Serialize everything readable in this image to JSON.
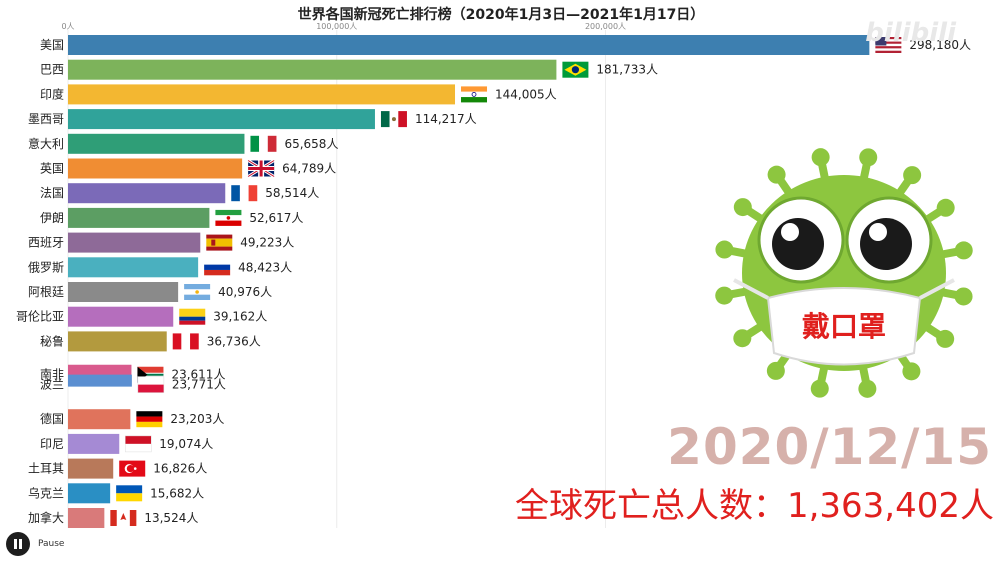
{
  "chart_data": {
    "type": "bar",
    "orientation": "horizontal",
    "title": "世界各国新冠死亡排行榜（2020年1月3日—2021年1月17日）",
    "x_ticks": [
      "0人",
      "100,000人",
      "200,000人"
    ],
    "x_tick_values": [
      0,
      100000,
      200000
    ],
    "xlim": [
      0,
      320000
    ],
    "categories": [
      "美国",
      "巴西",
      "印度",
      "墨西哥",
      "意大利",
      "英国",
      "法国",
      "伊朗",
      "西班牙",
      "俄罗斯",
      "阿根廷",
      "哥伦比亚",
      "秘鲁",
      "南非",
      "波兰",
      "德国",
      "印尼",
      "土耳其",
      "乌克兰",
      "加拿大"
    ],
    "values": [
      298180,
      181733,
      144005,
      114217,
      65658,
      64789,
      58514,
      52617,
      49223,
      48423,
      40976,
      39162,
      36736,
      23611,
      23771,
      23203,
      19074,
      16826,
      15682,
      13524
    ],
    "value_labels": [
      "298,180人",
      "181,733人",
      "144,005人",
      "114,217人",
      "65,658人",
      "64,789人",
      "58,514人",
      "52,617人",
      "49,223人",
      "48,423人",
      "40,976人",
      "39,162人",
      "36,736人",
      "23,611人",
      "23,771人",
      "23,203人",
      "19,074人",
      "16,826人",
      "15,682人",
      "13,524人"
    ],
    "colors": [
      "#3d7fb0",
      "#7db35b",
      "#f3b731",
      "#30a39a",
      "#2f9e77",
      "#f08d33",
      "#7b6ab8",
      "#5c9e63",
      "#8e6a98",
      "#4ab0bf",
      "#8a8a8a",
      "#b56ebd",
      "#b39a3e",
      "#d95a8d",
      "#5b8fd1",
      "#e0735c",
      "#a58ad4",
      "#b8795a",
      "#2a8fc4",
      "#d97a7a"
    ],
    "flags": [
      "us-flag",
      "brazil-flag",
      "india-flag",
      "mexico-flag",
      "italy-flag",
      "uk-flag",
      "france-flag",
      "iran-flag",
      "spain-flag",
      "russia-flag",
      "argentina-flag",
      "colombia-flag",
      "peru-flag",
      "south-africa-flag",
      "poland-flag",
      "germany-flag",
      "indonesia-flag",
      "turkey-flag",
      "ukraine-flag",
      "canada-flag"
    ],
    "grid": true,
    "legend": "none"
  },
  "overlay": {
    "mask_text": "戴口罩",
    "date": "2020/12/15",
    "total_label": "全球死亡总人数：",
    "total_value": "1,363,402人"
  },
  "controls": {
    "pause_label": "Pause"
  },
  "watermark": "bilibili"
}
